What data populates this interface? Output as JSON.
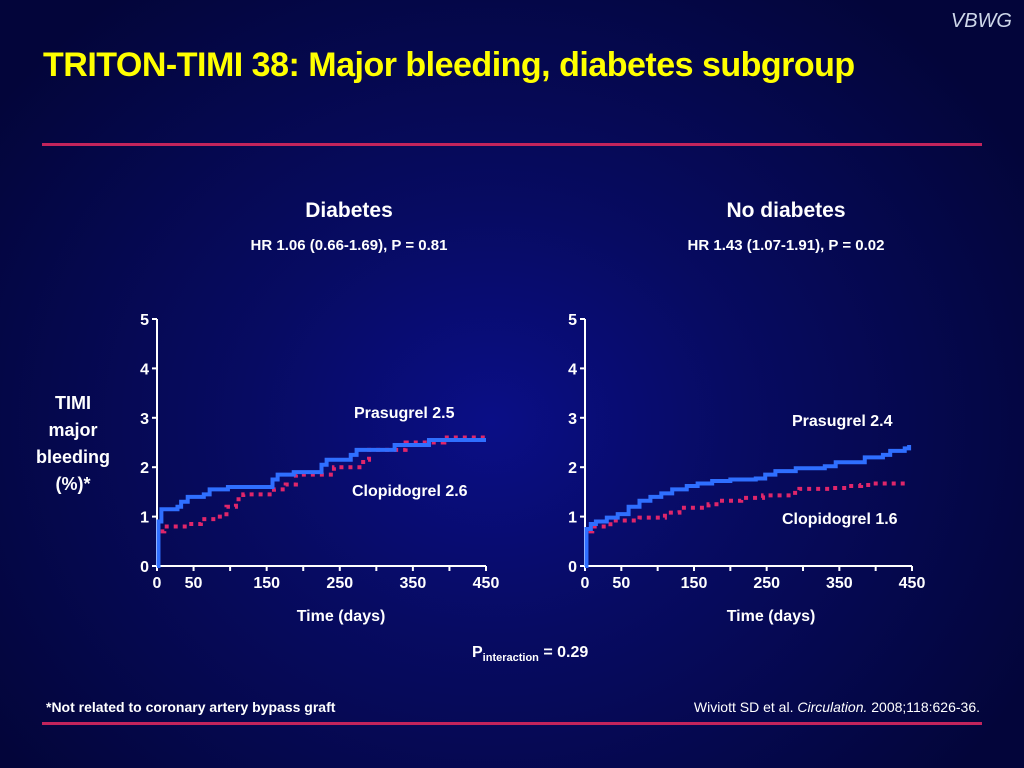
{
  "slide": {
    "brand": "VBWG",
    "title": "TRITON-TIMI 38: Major bleeding, diabetes subgroup",
    "ylabel_lines": [
      "TIMI",
      "major",
      "bleeding",
      "(%)*"
    ],
    "p_interaction": {
      "prefix": "P",
      "subscript": "interaction",
      "suffix": " = 0.29"
    },
    "footnote": "*Not related to coronary artery bypass graft",
    "citation": {
      "authors": "Wiviott SD et al. ",
      "journal": "Circulation.",
      "details": " 2008;118:626-36."
    }
  },
  "colors": {
    "title": "#ffff00",
    "rule": "#c2245c",
    "prasugrel": "#2f6fff",
    "clopidogrel": "#e0266a"
  },
  "chart_data": [
    {
      "type": "line",
      "title": "Diabetes",
      "subtitle": "HR 1.06 (0.66-1.69), P = 0.81",
      "xlabel": "Time (days)",
      "ylabel": "TIMI major bleeding (%)*",
      "xlim": [
        0,
        450
      ],
      "ylim": [
        0,
        5
      ],
      "xticks": [
        0,
        50,
        100,
        150,
        200,
        250,
        300,
        350,
        400,
        450
      ],
      "xtick_labels": [
        "0",
        "50",
        "",
        "150",
        "",
        "250",
        "",
        "350",
        "",
        "450"
      ],
      "yticks": [
        0,
        1,
        2,
        3,
        4,
        5
      ],
      "grid": false,
      "series": [
        {
          "name": "Prasugrel",
          "label": "Prasugrel 2.5",
          "style": "solid",
          "x": [
            0,
            2,
            6,
            28,
            33,
            42,
            64,
            72,
            97,
            158,
            165,
            187,
            225,
            232,
            265,
            273,
            325,
            372,
            450
          ],
          "y": [
            0,
            0.9,
            1.15,
            1.2,
            1.3,
            1.4,
            1.45,
            1.55,
            1.6,
            1.75,
            1.85,
            1.9,
            2.05,
            2.15,
            2.25,
            2.35,
            2.45,
            2.55,
            2.55
          ]
        },
        {
          "name": "Clopidogrel",
          "label": "Clopidogrel 2.6",
          "style": "dotted",
          "x": [
            5,
            10,
            43,
            60,
            80,
            95,
            108,
            118,
            160,
            176,
            190,
            242,
            282,
            290,
            340,
            393,
            450
          ],
          "y": [
            0.7,
            0.8,
            0.85,
            0.95,
            1.0,
            1.2,
            1.35,
            1.45,
            1.55,
            1.65,
            1.85,
            2.0,
            2.15,
            2.35,
            2.5,
            2.6,
            2.6
          ]
        }
      ]
    },
    {
      "type": "line",
      "title": "No diabetes",
      "subtitle": "HR 1.43 (1.07-1.91), P = 0.02",
      "xlabel": "Time (days)",
      "ylabel": "",
      "xlim": [
        0,
        450
      ],
      "ylim": [
        0,
        5
      ],
      "xticks": [
        0,
        50,
        100,
        150,
        200,
        250,
        300,
        350,
        400,
        450
      ],
      "xtick_labels": [
        "0",
        "50",
        "",
        "150",
        "",
        "250",
        "",
        "350",
        "",
        "450"
      ],
      "yticks": [
        0,
        1,
        2,
        3,
        4,
        5
      ],
      "grid": false,
      "series": [
        {
          "name": "Prasugrel",
          "label": "Prasugrel 2.4",
          "style": "solid",
          "x": [
            0,
            2,
            8,
            15,
            30,
            45,
            60,
            75,
            90,
            105,
            120,
            140,
            155,
            175,
            200,
            235,
            248,
            262,
            290,
            330,
            345,
            385,
            410,
            420,
            440,
            446
          ],
          "y": [
            0,
            0.75,
            0.85,
            0.9,
            0.98,
            1.05,
            1.2,
            1.32,
            1.4,
            1.47,
            1.55,
            1.62,
            1.67,
            1.72,
            1.75,
            1.77,
            1.85,
            1.92,
            1.98,
            2.02,
            2.1,
            2.2,
            2.25,
            2.33,
            2.38,
            2.45
          ]
        },
        {
          "name": "Clopidogrel",
          "label": "Clopidogrel 1.6",
          "style": "dotted",
          "x": [
            5,
            10,
            35,
            75,
            110,
            130,
            170,
            185,
            215,
            245,
            285,
            295,
            340,
            360,
            380,
            395,
            445
          ],
          "y": [
            0.7,
            0.8,
            0.92,
            0.98,
            1.08,
            1.18,
            1.25,
            1.32,
            1.38,
            1.43,
            1.48,
            1.56,
            1.58,
            1.62,
            1.64,
            1.67,
            1.67
          ]
        }
      ]
    }
  ]
}
